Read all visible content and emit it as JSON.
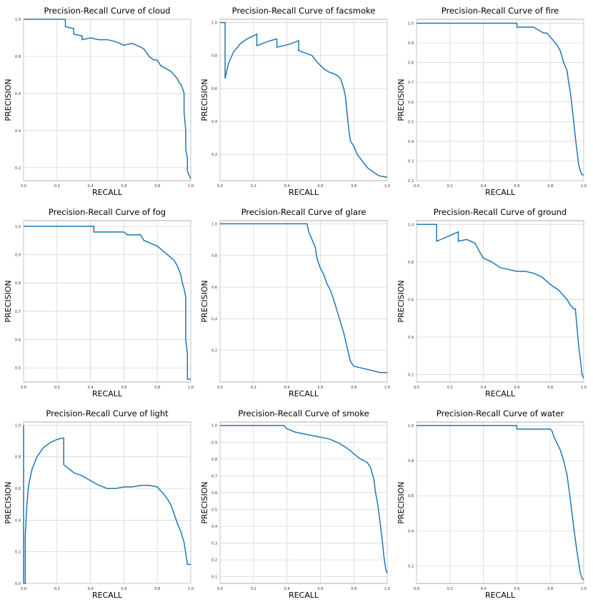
{
  "colors": {
    "line": "#1f77b4",
    "grid": "#d0d0d0",
    "axis": "#9a9a9a",
    "text": "#000000"
  },
  "chart_data": [
    {
      "type": "line",
      "title": "Precision-Recall Curve of cloud",
      "xlabel": "RECALL",
      "ylabel": "PRECISION",
      "xlim": [
        0,
        1
      ],
      "ylim": [
        0.13,
        1.0
      ],
      "xticks": [
        "0.0",
        "0.2",
        "0.4",
        "0.6",
        "0.8",
        "1.0"
      ],
      "xtick_values": [
        0,
        0.2,
        0.4,
        0.6,
        0.8,
        1.0
      ],
      "yticks": [
        "0.2",
        "0.4",
        "0.6",
        "0.8",
        "1.0"
      ],
      "ytick_values": [
        0.2,
        0.4,
        0.6,
        0.8,
        1.0
      ],
      "grid": true,
      "series": [
        {
          "x": [
            0,
            0.01,
            0.25,
            0.25,
            0.3,
            0.3,
            0.35,
            0.35,
            0.4,
            0.45,
            0.5,
            0.55,
            0.6,
            0.65,
            0.7,
            0.72,
            0.75,
            0.78,
            0.8,
            0.82,
            0.84,
            0.86,
            0.88,
            0.9,
            0.92,
            0.93,
            0.94,
            0.95,
            0.96,
            0.96,
            0.97,
            0.97,
            0.98,
            0.98,
            0.99,
            1.0
          ],
          "y": [
            1.0,
            1.0,
            1.0,
            0.96,
            0.95,
            0.92,
            0.91,
            0.89,
            0.9,
            0.89,
            0.89,
            0.88,
            0.86,
            0.87,
            0.85,
            0.84,
            0.8,
            0.78,
            0.78,
            0.75,
            0.74,
            0.73,
            0.72,
            0.7,
            0.68,
            0.66,
            0.65,
            0.63,
            0.6,
            0.5,
            0.4,
            0.3,
            0.25,
            0.18,
            0.16,
            0.14
          ]
        }
      ]
    },
    {
      "type": "line",
      "title": "Precision-Recall Curve of facsmoke",
      "xlabel": "RECALL",
      "ylabel": "PRECISION",
      "xlim": [
        0,
        1
      ],
      "ylim": [
        0.04,
        1.02
      ],
      "xticks": [
        "0.0",
        "0.2",
        "0.4",
        "0.6",
        "0.8",
        "1.0"
      ],
      "xtick_values": [
        0,
        0.2,
        0.4,
        0.6,
        0.8,
        1.0
      ],
      "yticks": [
        "0.2",
        "0.4",
        "0.6",
        "0.8",
        "1.0"
      ],
      "ytick_values": [
        0.2,
        0.4,
        0.6,
        0.8,
        1.0
      ],
      "grid": true,
      "series": [
        {
          "x": [
            0,
            0.03,
            0.03,
            0.05,
            0.08,
            0.12,
            0.16,
            0.2,
            0.22,
            0.22,
            0.3,
            0.34,
            0.34,
            0.42,
            0.47,
            0.47,
            0.55,
            0.58,
            0.6,
            0.62,
            0.65,
            0.68,
            0.7,
            0.72,
            0.74,
            0.75,
            0.76,
            0.77,
            0.78,
            0.8,
            0.82,
            0.85,
            0.88,
            0.92,
            0.95,
            1.0
          ],
          "y": [
            1.0,
            1.0,
            0.66,
            0.75,
            0.82,
            0.87,
            0.9,
            0.92,
            0.93,
            0.86,
            0.89,
            0.9,
            0.85,
            0.87,
            0.89,
            0.83,
            0.8,
            0.76,
            0.74,
            0.72,
            0.7,
            0.69,
            0.68,
            0.66,
            0.6,
            0.55,
            0.45,
            0.35,
            0.28,
            0.25,
            0.2,
            0.16,
            0.12,
            0.09,
            0.07,
            0.06
          ]
        }
      ]
    },
    {
      "type": "line",
      "title": "Precision-Recall Curve of fire",
      "xlabel": "RECALL",
      "ylabel": "PRECISION",
      "xlim": [
        0,
        1
      ],
      "ylim": [
        0.2,
        1.02
      ],
      "xticks": [
        "0.0",
        "0.2",
        "0.4",
        "0.6",
        "0.8",
        "1.0"
      ],
      "xtick_values": [
        0,
        0.2,
        0.4,
        0.6,
        0.8,
        1.0
      ],
      "yticks": [
        "0.2",
        "0.3",
        "0.4",
        "0.5",
        "0.6",
        "0.7",
        "0.8",
        "0.9",
        "1.0"
      ],
      "ytick_values": [
        0.2,
        0.3,
        0.4,
        0.5,
        0.6,
        0.7,
        0.8,
        0.9,
        1.0
      ],
      "grid": true,
      "series": [
        {
          "x": [
            0,
            0.6,
            0.6,
            0.7,
            0.72,
            0.74,
            0.76,
            0.78,
            0.8,
            0.82,
            0.84,
            0.86,
            0.87,
            0.88,
            0.9,
            0.91,
            0.92,
            0.93,
            0.94,
            0.95,
            0.96,
            0.97,
            0.98,
            0.99,
            1.0
          ],
          "y": [
            1.0,
            1.0,
            0.98,
            0.98,
            0.97,
            0.96,
            0.95,
            0.95,
            0.93,
            0.91,
            0.89,
            0.86,
            0.83,
            0.8,
            0.76,
            0.7,
            0.65,
            0.58,
            0.5,
            0.42,
            0.35,
            0.28,
            0.25,
            0.23,
            0.23
          ]
        }
      ]
    },
    {
      "type": "line",
      "title": "Precision-Recall Curve of fog",
      "xlabel": "RECALL",
      "ylabel": "PRECISION",
      "xlim": [
        0,
        1
      ],
      "ylim": [
        0.45,
        1.02
      ],
      "xticks": [
        "0.0",
        "0.2",
        "0.4",
        "0.6",
        "0.8",
        "1.0"
      ],
      "xtick_values": [
        0,
        0.2,
        0.4,
        0.6,
        0.8,
        1.0
      ],
      "yticks": [
        "0.5",
        "0.6",
        "0.7",
        "0.8",
        "0.9",
        "1.0"
      ],
      "ytick_values": [
        0.5,
        0.6,
        0.7,
        0.8,
        0.9,
        1.0
      ],
      "grid": true,
      "series": [
        {
          "x": [
            0,
            0.42,
            0.42,
            0.6,
            0.62,
            0.7,
            0.72,
            0.76,
            0.8,
            0.84,
            0.86,
            0.88,
            0.9,
            0.92,
            0.94,
            0.95,
            0.96,
            0.97,
            0.97,
            0.98,
            0.98,
            1.0
          ],
          "y": [
            1.0,
            1.0,
            0.98,
            0.98,
            0.97,
            0.97,
            0.95,
            0.94,
            0.93,
            0.91,
            0.9,
            0.89,
            0.88,
            0.86,
            0.83,
            0.8,
            0.78,
            0.75,
            0.6,
            0.55,
            0.46,
            0.46
          ]
        }
      ]
    },
    {
      "type": "line",
      "title": "Precision-Recall Curve of glare",
      "xlabel": "RECALL",
      "ylabel": "PRECISION",
      "xlim": [
        0,
        1
      ],
      "ylim": [
        0.0,
        1.02
      ],
      "xticks": [
        "0.0",
        "0.2",
        "0.4",
        "0.6",
        "0.8",
        "1.0"
      ],
      "xtick_values": [
        0,
        0.2,
        0.4,
        0.6,
        0.8,
        1.0
      ],
      "yticks": [
        "0.2",
        "0.4",
        "0.6",
        "0.8",
        "1.0"
      ],
      "ytick_values": [
        0.2,
        0.4,
        0.6,
        0.8,
        1.0
      ],
      "grid": true,
      "series": [
        {
          "x": [
            0,
            0.52,
            0.53,
            0.55,
            0.57,
            0.58,
            0.6,
            0.62,
            0.64,
            0.66,
            0.68,
            0.7,
            0.72,
            0.74,
            0.76,
            0.78,
            0.8,
            0.84,
            0.88,
            0.92,
            0.96,
            1.0
          ],
          "y": [
            1.0,
            1.0,
            0.95,
            0.9,
            0.85,
            0.78,
            0.72,
            0.68,
            0.62,
            0.58,
            0.52,
            0.45,
            0.38,
            0.31,
            0.22,
            0.13,
            0.1,
            0.09,
            0.08,
            0.07,
            0.06,
            0.06
          ]
        }
      ]
    },
    {
      "type": "line",
      "title": "Precision-Recall Curve of ground",
      "xlabel": "RECALL",
      "ylabel": "PRECISION",
      "xlim": [
        0,
        1
      ],
      "ylim": [
        0.16,
        1.02
      ],
      "xticks": [
        "0.0",
        "0.2",
        "0.4",
        "0.6",
        "0.8",
        "1.0"
      ],
      "xtick_values": [
        0,
        0.2,
        0.4,
        0.6,
        0.8,
        1.0
      ],
      "yticks": [
        "0.2",
        "0.4",
        "0.6",
        "0.8",
        "1.0"
      ],
      "ytick_values": [
        0.2,
        0.4,
        0.6,
        0.8,
        1.0
      ],
      "grid": true,
      "series": [
        {
          "x": [
            0,
            0.12,
            0.12,
            0.25,
            0.25,
            0.3,
            0.35,
            0.38,
            0.4,
            0.45,
            0.5,
            0.55,
            0.6,
            0.65,
            0.7,
            0.75,
            0.8,
            0.85,
            0.9,
            0.92,
            0.94,
            0.95,
            0.96,
            0.97,
            0.98,
            0.99,
            1.0
          ],
          "y": [
            1.0,
            1.0,
            0.91,
            0.96,
            0.91,
            0.92,
            0.9,
            0.85,
            0.82,
            0.8,
            0.77,
            0.76,
            0.75,
            0.75,
            0.74,
            0.72,
            0.68,
            0.65,
            0.6,
            0.57,
            0.55,
            0.55,
            0.45,
            0.35,
            0.28,
            0.2,
            0.18
          ]
        }
      ]
    },
    {
      "type": "line",
      "title": "Precision-Recall Curve of light",
      "xlabel": "RECALL",
      "ylabel": "PRECISION",
      "xlim": [
        0,
        1
      ],
      "ylim": [
        0.0,
        1.02
      ],
      "xticks": [
        "0.0",
        "0.2",
        "0.4",
        "0.6",
        "0.8",
        "1.0"
      ],
      "xtick_values": [
        0,
        0.2,
        0.4,
        0.6,
        0.8,
        1.0
      ],
      "yticks": [
        "0.0",
        "0.2",
        "0.4",
        "0.6",
        "0.8",
        "1.0"
      ],
      "ytick_values": [
        0,
        0.2,
        0.4,
        0.6,
        0.8,
        1.0
      ],
      "grid": true,
      "series": [
        {
          "x": [
            0,
            0.0,
            0.01,
            0.01,
            0.02,
            0.03,
            0.05,
            0.08,
            0.12,
            0.16,
            0.2,
            0.24,
            0.24,
            0.3,
            0.35,
            0.4,
            0.45,
            0.5,
            0.55,
            0.6,
            0.65,
            0.7,
            0.75,
            0.8,
            0.85,
            0.88,
            0.9,
            0.92,
            0.94,
            0.96,
            0.98,
            1.0
          ],
          "y": [
            1.0,
            0.0,
            0.0,
            0.3,
            0.5,
            0.62,
            0.72,
            0.8,
            0.86,
            0.89,
            0.91,
            0.92,
            0.75,
            0.7,
            0.68,
            0.65,
            0.62,
            0.6,
            0.6,
            0.61,
            0.61,
            0.62,
            0.62,
            0.61,
            0.55,
            0.5,
            0.44,
            0.38,
            0.33,
            0.26,
            0.12,
            0.12
          ]
        }
      ]
    },
    {
      "type": "line",
      "title": "Precision-Recall Curve of smoke",
      "xlabel": "RECALL",
      "ylabel": "PRECISION",
      "xlim": [
        0,
        1
      ],
      "ylim": [
        0.06,
        1.02
      ],
      "xticks": [
        "0.0",
        "0.2",
        "0.4",
        "0.6",
        "0.8",
        "1.0"
      ],
      "xtick_values": [
        0,
        0.2,
        0.4,
        0.6,
        0.8,
        1.0
      ],
      "yticks": [
        "0.1",
        "0.2",
        "0.3",
        "0.4",
        "0.5",
        "0.6",
        "0.7",
        "0.8",
        "0.9",
        "1.0"
      ],
      "ytick_values": [
        0.1,
        0.2,
        0.3,
        0.4,
        0.5,
        0.6,
        0.7,
        0.8,
        0.9,
        1.0
      ],
      "grid": true,
      "series": [
        {
          "x": [
            0,
            0.38,
            0.4,
            0.45,
            0.5,
            0.55,
            0.6,
            0.65,
            0.7,
            0.72,
            0.75,
            0.78,
            0.8,
            0.84,
            0.88,
            0.9,
            0.92,
            0.93,
            0.94,
            0.95,
            0.96,
            0.97,
            0.98,
            0.99,
            1.0
          ],
          "y": [
            1.0,
            1.0,
            0.98,
            0.96,
            0.95,
            0.94,
            0.93,
            0.92,
            0.9,
            0.89,
            0.87,
            0.85,
            0.83,
            0.8,
            0.78,
            0.75,
            0.68,
            0.6,
            0.55,
            0.48,
            0.4,
            0.32,
            0.22,
            0.15,
            0.12
          ]
        }
      ]
    },
    {
      "type": "line",
      "title": "Precision-Recall Curve of water",
      "xlabel": "RECALL",
      "ylabel": "PRECISION",
      "xlim": [
        0,
        1
      ],
      "ylim": [
        0.1,
        1.02
      ],
      "xticks": [
        "0.0",
        "0.2",
        "0.4",
        "0.6",
        "0.8",
        "1.0"
      ],
      "xtick_values": [
        0,
        0.2,
        0.4,
        0.6,
        0.8,
        1.0
      ],
      "yticks": [
        "0.2",
        "0.4",
        "0.6",
        "0.8",
        "1.0"
      ],
      "ytick_values": [
        0.2,
        0.4,
        0.6,
        0.8,
        1.0
      ],
      "grid": true,
      "series": [
        {
          "x": [
            0,
            0.6,
            0.6,
            0.8,
            0.81,
            0.82,
            0.84,
            0.86,
            0.88,
            0.9,
            0.91,
            0.92,
            0.93,
            0.94,
            0.95,
            0.96,
            0.97,
            0.98,
            0.99,
            1.0
          ],
          "y": [
            1.0,
            1.0,
            0.98,
            0.98,
            0.97,
            0.94,
            0.9,
            0.86,
            0.8,
            0.72,
            0.65,
            0.58,
            0.5,
            0.42,
            0.35,
            0.28,
            0.22,
            0.16,
            0.13,
            0.12
          ]
        }
      ]
    }
  ]
}
